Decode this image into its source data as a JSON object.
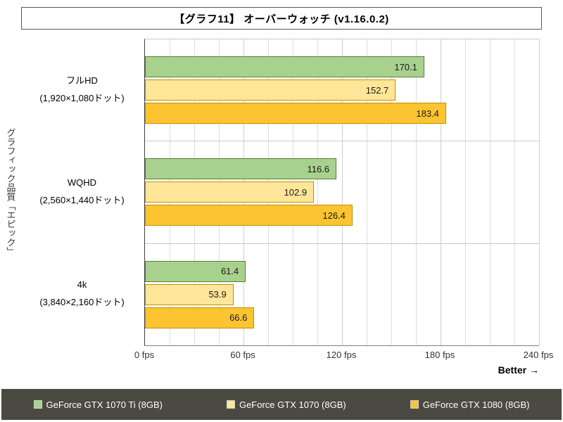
{
  "title": "【グラフ11】 オーバーウォッチ (v1.16.0.2)",
  "y_axis_label": "グラフィック品質「エピック」",
  "better_label": "Better →",
  "legend": {
    "background": "#4A4A42"
  },
  "chart_data": {
    "type": "bar",
    "orientation": "horizontal",
    "title": "【グラフ11】 オーバーウォッチ (v1.16.0.2)",
    "ylabel": "グラフィック品質「エピック」",
    "xlabel": "fps",
    "categories": [
      "フルHD",
      "WQHD",
      "4k"
    ],
    "category_sublabels": [
      "(1,920×1,080ドット)",
      "(2,560×1,440ドット)",
      "(3,840×2,160ドット)"
    ],
    "series": [
      {
        "name": "GeForce GTX 1070 Ti (8GB)",
        "fill": "#A9D18E",
        "border": "#538135",
        "values": [
          170.1,
          116.6,
          61.4
        ]
      },
      {
        "name": "GeForce GTX 1070 (8GB)",
        "fill": "#FFE699",
        "border": "#BF9000",
        "values": [
          152.7,
          102.9,
          53.9
        ]
      },
      {
        "name": "GeForce GTX 1080 (8GB)",
        "fill": "#FDC431",
        "border": "#BF9000",
        "values": [
          183.4,
          126.4,
          66.6
        ]
      }
    ],
    "x_ticks": [
      {
        "value": 0,
        "label": "0 fps"
      },
      {
        "value": 60,
        "label": "60 fps"
      },
      {
        "value": 120,
        "label": "120 fps"
      },
      {
        "value": 180,
        "label": "180 fps"
      },
      {
        "value": 240,
        "label": "240 fps"
      }
    ],
    "xlim": [
      0,
      240
    ],
    "minor_grid_step": 15,
    "grid": true,
    "legend_position": "bottom"
  }
}
